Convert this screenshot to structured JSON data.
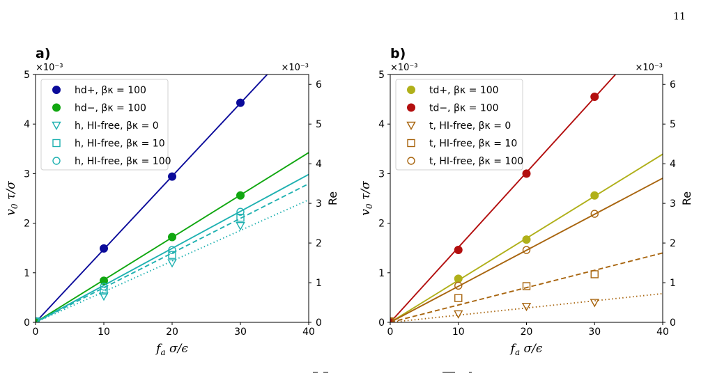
{
  "page": {
    "number": "11"
  },
  "chart_data": [
    {
      "type": "scatter",
      "panel_label": "a)",
      "xlabel": "f_a σ/ϵ",
      "ylabel": "v_0 τ/σ",
      "y2label": "Re",
      "y_multiplier": "×10⁻³",
      "y2_multiplier": "×10⁻³",
      "xlim": [
        0,
        40
      ],
      "ylim": [
        0,
        5
      ],
      "y2lim": [
        0,
        6.25
      ],
      "xticks": [
        "0",
        "10",
        "20",
        "30",
        "40"
      ],
      "yticks": [
        "0",
        "1",
        "2",
        "3",
        "4",
        "5"
      ],
      "y2ticks": [
        "0",
        "1",
        "2",
        "3",
        "4",
        "5",
        "6"
      ],
      "grid": false,
      "legend_position": "upper-left",
      "series": [
        {
          "name": "hd+, βκ = 100",
          "color": "#0b0b9a",
          "marker": "circle-filled",
          "line": "solid",
          "x": [
            0,
            10,
            20,
            30
          ],
          "y": [
            0.02,
            1.49,
            2.94,
            4.43
          ],
          "slope": 0.1474
        },
        {
          "name": "hd−, βκ = 100",
          "color": "#11a711",
          "marker": "circle-filled",
          "line": "solid",
          "x": [
            0,
            10,
            20,
            30
          ],
          "y": [
            0.02,
            0.84,
            1.72,
            2.56
          ],
          "slope": 0.0856
        },
        {
          "name": "h, HI-free, βκ = 0",
          "color": "#1fb1b1",
          "marker": "triangle-down-open",
          "line": "dotted",
          "x": [
            0,
            10,
            20,
            30
          ],
          "y": [
            0.02,
            0.53,
            1.2,
            1.95
          ],
          "slope": 0.0618
        },
        {
          "name": "h, HI-free, βκ = 10",
          "color": "#1fb1b1",
          "marker": "square-open",
          "line": "dashed",
          "x": [
            0,
            10,
            20,
            30
          ],
          "y": [
            0.02,
            0.64,
            1.36,
            2.11
          ],
          "slope": 0.0699
        },
        {
          "name": "h, HI-free, βκ = 100",
          "color": "#1fb1b1",
          "marker": "circle-open",
          "line": "solid",
          "x": [
            0,
            10,
            20,
            30
          ],
          "y": [
            0.02,
            0.72,
            1.46,
            2.23
          ],
          "slope": 0.0746
        }
      ]
    },
    {
      "type": "scatter",
      "panel_label": "b)",
      "xlabel": "f_a σ/ϵ",
      "ylabel": "v_0 τ/σ",
      "y2label": "Re",
      "y_multiplier": "×10⁻³",
      "y2_multiplier": "×10⁻³",
      "xlim": [
        0,
        40
      ],
      "ylim": [
        0,
        5
      ],
      "y2lim": [
        0,
        6.25
      ],
      "xticks": [
        "0",
        "10",
        "20",
        "30",
        "40"
      ],
      "yticks": [
        "0",
        "1",
        "2",
        "3",
        "4",
        "5"
      ],
      "y2ticks": [
        "0",
        "1",
        "2",
        "3",
        "4",
        "5",
        "6"
      ],
      "grid": false,
      "legend_position": "upper-left",
      "series": [
        {
          "name": "td+, βκ = 100",
          "color": "#b0b01a",
          "marker": "circle-filled",
          "line": "solid",
          "x": [
            0,
            10,
            20,
            30
          ],
          "y": [
            0.02,
            0.88,
            1.67,
            2.56
          ],
          "slope": 0.0848
        },
        {
          "name": "td−, βκ = 100",
          "color": "#b30f0f",
          "marker": "circle-filled",
          "line": "solid",
          "x": [
            0,
            10,
            20,
            30
          ],
          "y": [
            0.02,
            1.46,
            3.0,
            4.55
          ],
          "slope": 0.1512
        },
        {
          "name": "t, HI-free, βκ = 0",
          "color": "#a8650f",
          "marker": "triangle-down-open",
          "line": "dotted",
          "x": [
            0,
            10,
            20,
            30
          ],
          "y": [
            0.02,
            0.17,
            0.32,
            0.4
          ],
          "slope": 0.0145
        },
        {
          "name": "t, HI-free, βκ = 10",
          "color": "#a8650f",
          "marker": "square-open",
          "line": "dashed",
          "x": [
            0,
            10,
            20,
            30
          ],
          "y": [
            0.02,
            0.49,
            0.73,
            0.97
          ],
          "slope": 0.035
        },
        {
          "name": "t, HI-free, βκ = 100",
          "color": "#a8650f",
          "marker": "circle-open",
          "line": "solid",
          "x": [
            0,
            10,
            20,
            30
          ],
          "y": [
            0.02,
            0.74,
            1.46,
            2.19
          ],
          "slope": 0.0727
        }
      ]
    }
  ]
}
